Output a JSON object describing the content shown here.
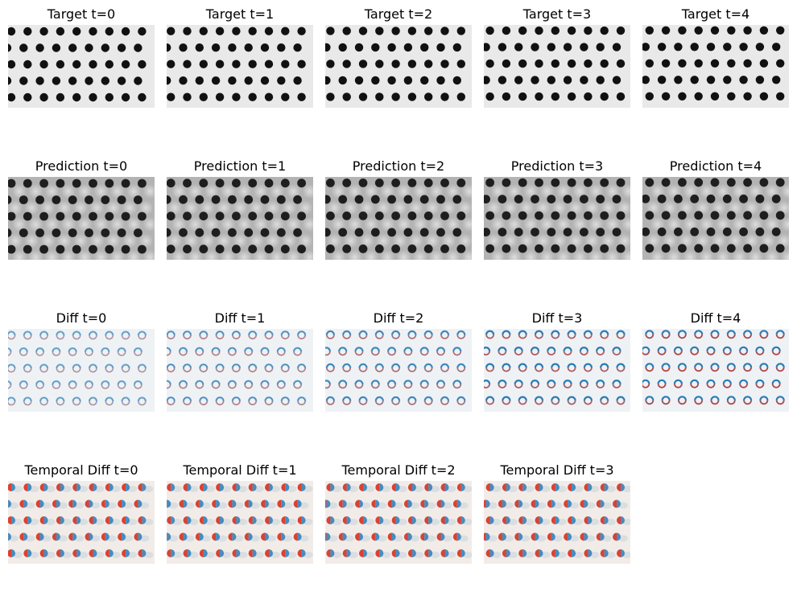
{
  "rows": [
    {
      "kind": "target",
      "titles": [
        "Target t=0",
        "Target t=1",
        "Target t=2",
        "Target t=3",
        "Target t=4"
      ]
    },
    {
      "kind": "prediction",
      "titles": [
        "Prediction t=0",
        "Prediction t=1",
        "Prediction t=2",
        "Prediction t=3",
        "Prediction t=4"
      ]
    },
    {
      "kind": "diff",
      "titles": [
        "Diff t=0",
        "Diff t=1",
        "Diff t=2",
        "Diff t=3",
        "Diff t=4"
      ]
    },
    {
      "kind": "temporal",
      "titles": [
        "Temporal Diff t=0",
        "Temporal Diff t=1",
        "Temporal Diff t=2",
        "Temporal Diff t=3"
      ]
    }
  ],
  "colors": {
    "target_bg": "#e9e9e9",
    "dot": "#111111",
    "prediction_bg": "#b3b3b3",
    "diff_bg": "#eef2f5",
    "diff_blue": "#2c7bb6",
    "diff_red": "#d7301f",
    "temporal_bg": "#f2ece8"
  }
}
